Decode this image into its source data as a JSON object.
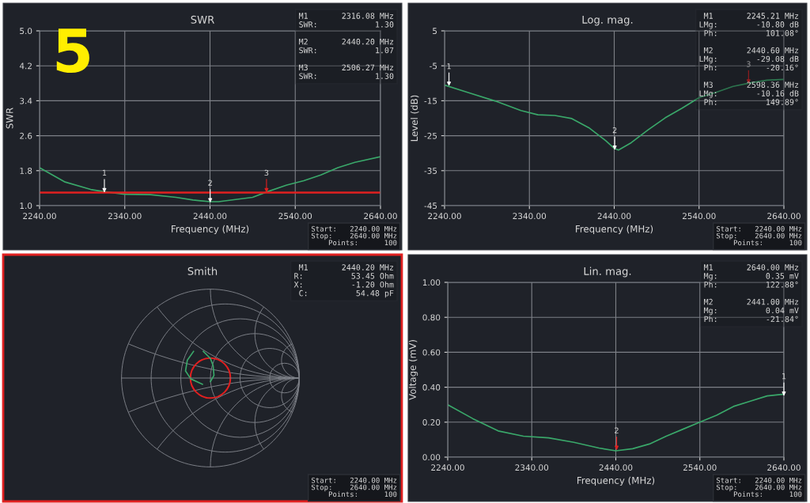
{
  "chart_data": [
    {
      "type": "line",
      "title": "SWR",
      "xlabel": "Frequency (MHz)",
      "ylabel": "SWR",
      "x": [
        2240,
        2270,
        2300,
        2316,
        2340,
        2370,
        2400,
        2420,
        2440,
        2450,
        2470,
        2490,
        2506,
        2530,
        2550,
        2570,
        2590,
        2610,
        2640
      ],
      "series": [
        {
          "color": "#3aa86a",
          "values": [
            1.87,
            1.54,
            1.37,
            1.32,
            1.26,
            1.25,
            1.19,
            1.13,
            1.09,
            1.09,
            1.14,
            1.19,
            1.31,
            1.47,
            1.57,
            1.7,
            1.87,
            1.99,
            2.12
          ]
        }
      ],
      "xlim": [
        2240,
        2640
      ],
      "xticks": [
        {
          "value": 2240,
          "label": "2240.00"
        },
        {
          "value": 2340,
          "label": "2340.00"
        },
        {
          "value": 2440,
          "label": "2440.00"
        },
        {
          "value": 2540,
          "label": "2540.00"
        },
        {
          "value": 2640,
          "label": "2640.00"
        }
      ],
      "ylim": [
        1.0,
        5.0
      ],
      "yticks": [
        {
          "value": 1.0,
          "label": "1.0"
        },
        {
          "value": 1.8,
          "label": "1.8"
        },
        {
          "value": 2.6,
          "label": "2.6"
        },
        {
          "value": 3.4,
          "label": "3.4"
        },
        {
          "value": 4.2,
          "label": "4.2"
        },
        {
          "value": 5.0,
          "label": "5.0"
        }
      ],
      "grid": true,
      "ref_lines": [
        {
          "axis": "y",
          "value": 1.3,
          "color": "#e02020"
        }
      ],
      "annotations": [
        "M1       2316.08 MHz\nSWR:            1.30\n\nM2       2440.20 MHz\nSWR:            1.07\n\nM3       2506.27 MHz\nSWR:            1.30",
        "Start:   2240.00 MHz\nStop:    2640.00 MHz\nPoints:      100",
        "5",
        {
          "text": "1",
          "x": 2316.08,
          "y": 1.3
        },
        {
          "text": "2",
          "x": 2440.2,
          "y": 1.07
        },
        {
          "text": "3",
          "x": 2506.27,
          "y": 1.3
        }
      ]
    },
    {
      "type": "line",
      "title": "Log. mag.",
      "xlabel": "Frequency (MHz)",
      "ylabel": "Level (dB)",
      "x": [
        2240,
        2270,
        2300,
        2330,
        2350,
        2370,
        2390,
        2410,
        2430,
        2440,
        2445,
        2460,
        2480,
        2500,
        2520,
        2540,
        2560,
        2580,
        2600,
        2620,
        2640
      ],
      "series": [
        {
          "color": "#3aa86a",
          "values": [
            -10.5,
            -12.8,
            -15.1,
            -17.8,
            -19.0,
            -19.2,
            -20.1,
            -22.7,
            -26.4,
            -28.6,
            -29.1,
            -27.0,
            -23.3,
            -19.9,
            -17.1,
            -14.1,
            -12.6,
            -10.9,
            -9.9,
            -9.1,
            -8.9
          ]
        }
      ],
      "xlim": [
        2240,
        2640
      ],
      "xticks": [
        {
          "value": 2240,
          "label": "2240.00"
        },
        {
          "value": 2340,
          "label": "2340.00"
        },
        {
          "value": 2440,
          "label": "2440.00"
        },
        {
          "value": 2540,
          "label": "2540.00"
        },
        {
          "value": 2640,
          "label": "2640.00"
        }
      ],
      "ylim": [
        -45,
        5
      ],
      "yticks": [
        -45,
        -35,
        -25,
        -15,
        -5,
        5
      ],
      "grid": true,
      "annotations": [
        "M1       2245.21 MHz\nLMg:        -10.80 dB\nPh:          101.08°\n\nM2       2440.60 MHz\nLMg:        -29.08 dB\nPh:          -20.16°\n\nM3       2598.36 MHz\nLMg:        -10.16 dB\nPh:          149.89°",
        "Start:   2240.00 MHz\nStop:    2640.00 MHz\nPoints:      100",
        {
          "text": "1",
          "x": 2245.21,
          "y": -10.8
        },
        {
          "text": "2",
          "x": 2440.6,
          "y": -29.08
        },
        {
          "text": "3",
          "x": 2598.36,
          "y": -10.16
        }
      ]
    },
    {
      "type": "other",
      "title": "Smith",
      "annotations": [
        "M1       2440.20 MHz\nR:          53.45 Ohm\nX:          -1.20 Ohm\nC:          54.48 pF",
        "Start:   2240.00 MHz\nStop:    2640.00 MHz\nPoints:      100"
      ]
    },
    {
      "type": "line",
      "title": "Lin. mag.",
      "xlabel": "Frequency (MHz)",
      "ylabel": "Voltage (mV)",
      "x": [
        2240,
        2270,
        2300,
        2330,
        2360,
        2390,
        2420,
        2440,
        2460,
        2480,
        2500,
        2520,
        2540,
        2560,
        2580,
        2600,
        2620,
        2640
      ],
      "series": [
        {
          "color": "#3aa86a",
          "values": [
            0.3,
            0.22,
            0.15,
            0.12,
            0.11,
            0.085,
            0.052,
            0.036,
            0.048,
            0.075,
            0.12,
            0.16,
            0.2,
            0.24,
            0.29,
            0.32,
            0.35,
            0.36
          ]
        }
      ],
      "xlim": [
        2240,
        2640
      ],
      "xticks": [
        {
          "value": 2240,
          "label": "2240.00"
        },
        {
          "value": 2340,
          "label": "2340.00"
        },
        {
          "value": 2440,
          "label": "2440.00"
        },
        {
          "value": 2540,
          "label": "2540.00"
        },
        {
          "value": 2640,
          "label": "2640.00"
        }
      ],
      "ylim": [
        0.0,
        1.0
      ],
      "yticks": [
        {
          "value": 0.0,
          "label": "0.00"
        },
        {
          "value": 0.2,
          "label": "0.20"
        },
        {
          "value": 0.4,
          "label": "0.40"
        },
        {
          "value": 0.6,
          "label": "0.60"
        },
        {
          "value": 0.8,
          "label": "0.80"
        },
        {
          "value": 1.0,
          "label": "1.00"
        }
      ],
      "grid": true,
      "annotations": [
        "M1       2640.00 MHz\nMg:          0.35 mV\nPh:          122.88°\n\nM2       2441.00 MHz\nMg:          0.04 mV\nPh:          -21.84°",
        "Start:   2240.00 MHz\nStop:    2640.00 MHz\nPoints:      100",
        {
          "text": "1",
          "x": 2640.0,
          "y": 0.35
        },
        {
          "text": "2",
          "x": 2441.0,
          "y": 0.04
        }
      ]
    }
  ]
}
